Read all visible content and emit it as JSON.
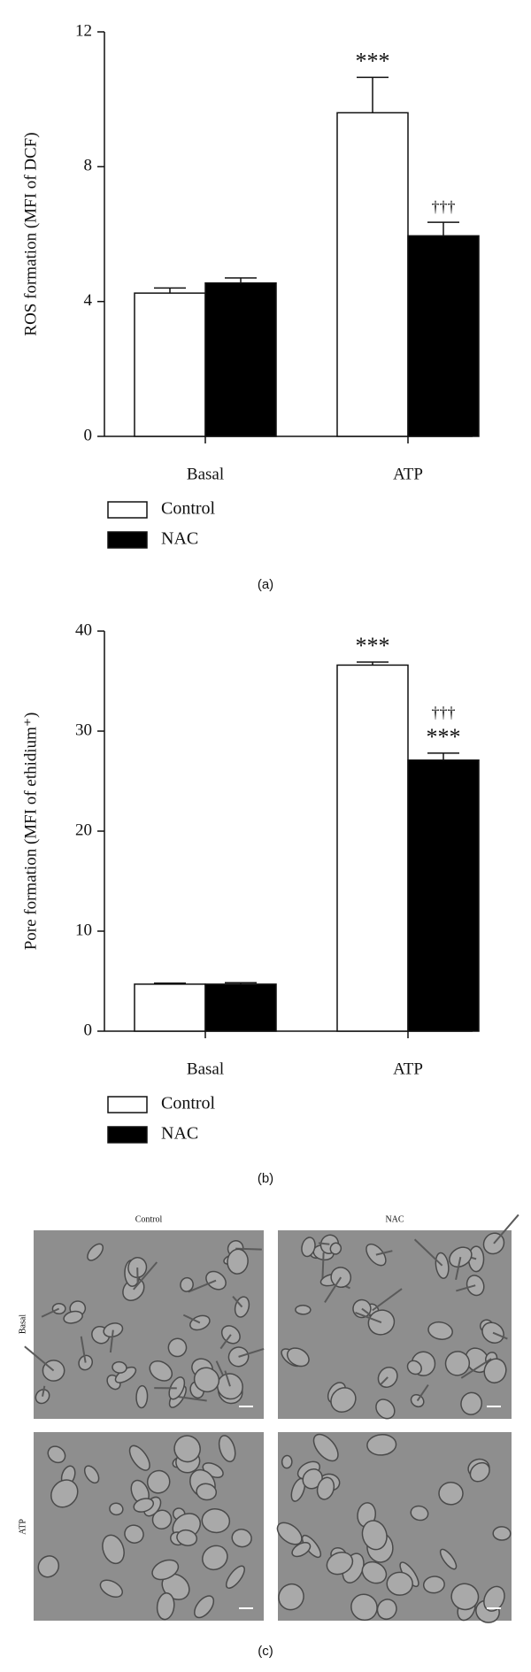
{
  "chart_data": [
    {
      "type": "bar",
      "caption": "(a)",
      "y_label": "ROS formation (MFI of DCF)",
      "categories": [
        "Basal",
        "ATP"
      ],
      "series": [
        {
          "name": "Control",
          "color": "#ffffff",
          "values": [
            4.25,
            9.6
          ],
          "errors": [
            0.15,
            1.05
          ],
          "annotations": [
            null,
            [
              "***"
            ]
          ]
        },
        {
          "name": "NAC",
          "color": "#000000",
          "values": [
            4.55,
            5.95
          ],
          "errors": [
            0.15,
            0.4
          ],
          "annotations": [
            null,
            [
              "†††"
            ]
          ]
        }
      ],
      "ylim": [
        0,
        12
      ],
      "yticks": [
        0,
        4,
        8,
        12
      ]
    },
    {
      "type": "bar",
      "caption": "(b)",
      "y_label": "Pore formation (MFI of ethidium⁺)",
      "categories": [
        "Basal",
        "ATP"
      ],
      "series": [
        {
          "name": "Control",
          "color": "#ffffff",
          "values": [
            4.7,
            36.6
          ],
          "errors": [
            0.1,
            0.3
          ],
          "annotations": [
            null,
            [
              "***"
            ]
          ]
        },
        {
          "name": "NAC",
          "color": "#000000",
          "values": [
            4.7,
            27.1
          ],
          "errors": [
            0.15,
            0.7
          ],
          "annotations": [
            null,
            [
              "***",
              "†††"
            ]
          ]
        }
      ],
      "ylim": [
        0,
        40
      ],
      "yticks": [
        0,
        10,
        20,
        30,
        40
      ]
    }
  ],
  "panel_c": {
    "column_labels": [
      "Control",
      "NAC"
    ],
    "row_labels": [
      "Basal",
      "ATP"
    ],
    "caption": "(c)"
  }
}
